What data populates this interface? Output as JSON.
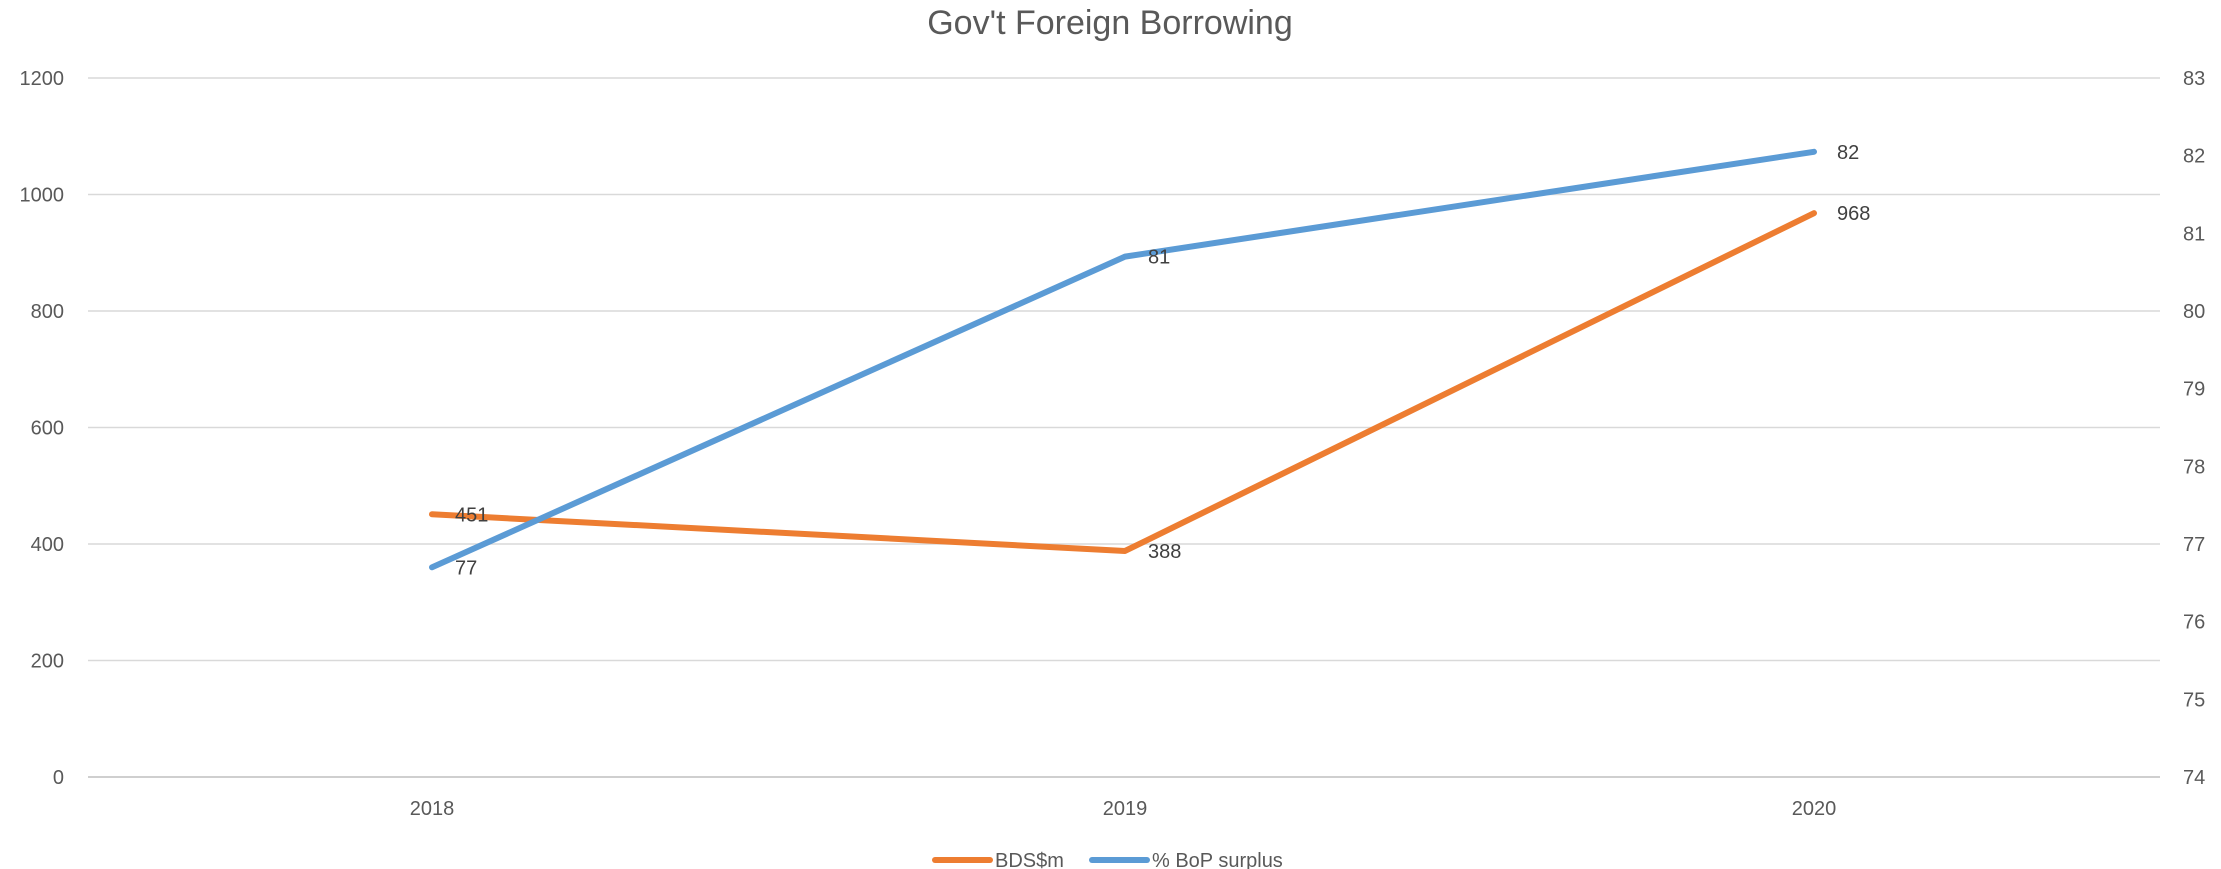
{
  "chart_data": {
    "type": "line",
    "title": "Gov't Foreign Borrowing",
    "categories": [
      "2018",
      "2019",
      "2020"
    ],
    "y_left": {
      "min": 0,
      "max": 1200,
      "step": 200,
      "ticks": [
        "0",
        "200",
        "400",
        "600",
        "800",
        "1000",
        "1200"
      ]
    },
    "y_right": {
      "min": 74,
      "max": 83,
      "step": 1,
      "ticks": [
        "74",
        "75",
        "76",
        "77",
        "78",
        "79",
        "80",
        "81",
        "82",
        "83"
      ]
    },
    "grid": true,
    "legend_position": "bottom",
    "series": [
      {
        "name": "BDS$m",
        "axis": "left",
        "color": "#ED7D31",
        "values": [
          451,
          388,
          968
        ],
        "labels": [
          "451",
          "388",
          "968"
        ]
      },
      {
        "name": "% BoP surplus",
        "axis": "right",
        "color": "#5B9BD5",
        "values": [
          76.7,
          80.7,
          82.05
        ],
        "labels": [
          "77",
          "81",
          "82"
        ]
      }
    ]
  }
}
